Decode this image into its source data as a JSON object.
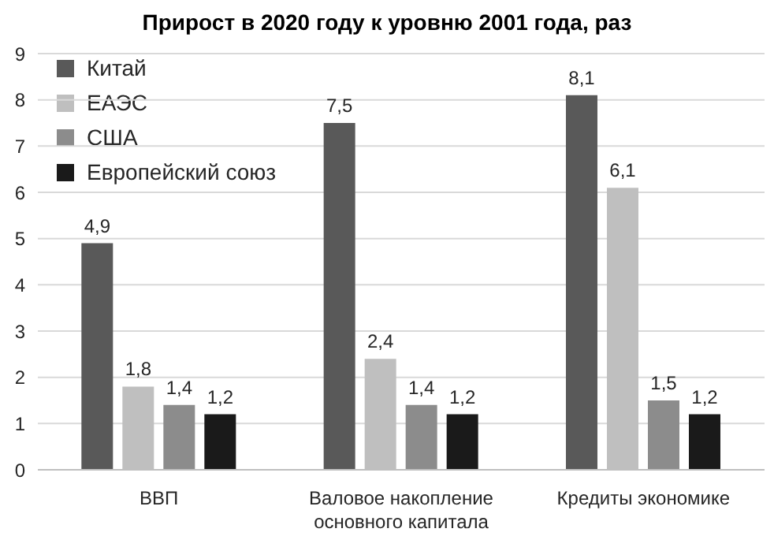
{
  "chart_data": {
    "type": "bar",
    "title": "Прирост в 2020 году к уровню 2001 года, раз",
    "categories": [
      "ВВП",
      "Валовое накопление основного капитала",
      "Кредиты экономике"
    ],
    "series": [
      {
        "name": "Китай",
        "color": "#595959",
        "values": [
          4.9,
          7.5,
          8.1
        ],
        "value_labels": [
          "4,9",
          "7,5",
          "8,1"
        ]
      },
      {
        "name": "ЕАЭС",
        "color": "#bfbfbf",
        "values": [
          1.8,
          2.4,
          6.1
        ],
        "value_labels": [
          "1,8",
          "2,4",
          "6,1"
        ]
      },
      {
        "name": "США",
        "color": "#8c8c8c",
        "values": [
          1.4,
          1.4,
          1.5
        ],
        "value_labels": [
          "1,4",
          "1,4",
          "1,5"
        ]
      },
      {
        "name": "Европейский союз",
        "color": "#1a1a1a",
        "values": [
          1.2,
          1.2,
          1.2
        ],
        "value_labels": [
          "1,2",
          "1,2",
          "1,2"
        ]
      }
    ],
    "ylim": [
      0,
      9
    ],
    "yticks": [
      0,
      1,
      2,
      3,
      4,
      5,
      6,
      7,
      8,
      9
    ],
    "grid": "y",
    "legend": "top left"
  }
}
